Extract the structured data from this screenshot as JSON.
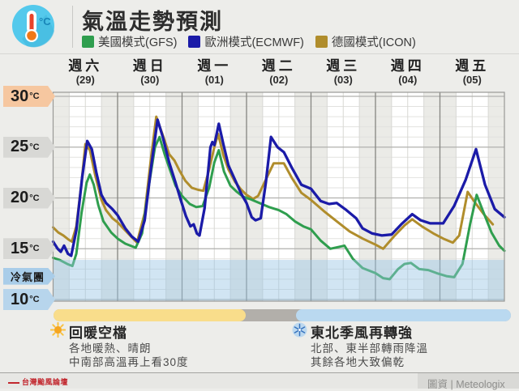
{
  "header": {
    "title": "氣溫走勢預測",
    "legend": [
      {
        "label": "美國模式(GFS)",
        "color": "#2f9e4e"
      },
      {
        "label": "歐洲模式(ECMWF)",
        "color": "#1b1ba8"
      },
      {
        "label": "德國模式(ICON)",
        "color": "#b08d2c"
      }
    ]
  },
  "chart_data": {
    "type": "line",
    "title": "氣溫走勢預測",
    "ylabel": "°C",
    "ylim": [
      9.8,
      30.4
    ],
    "grid": true,
    "x_axis": {
      "days": [
        {
          "weekday": "週六",
          "date": "(29)"
        },
        {
          "weekday": "週日",
          "date": "(30)"
        },
        {
          "weekday": "週一",
          "date": "(01)"
        },
        {
          "weekday": "週二",
          "date": "(02)"
        },
        {
          "weekday": "週三",
          "date": "(03)"
        },
        {
          "weekday": "週四",
          "date": "(04)"
        },
        {
          "weekday": "週五",
          "date": "(05)"
        }
      ],
      "minor_tick_hours": 6
    },
    "y_axis": {
      "unit": "°C",
      "major_ticks": [
        30,
        25,
        20,
        15,
        10
      ],
      "minor_step": 1,
      "tags": [
        {
          "label": "30",
          "unit": "°C",
          "value": 30,
          "bg": "#f6c7a0",
          "small": false
        },
        {
          "label": "25",
          "unit": "°C",
          "value": 25,
          "bg": "#d8d8d5",
          "small": false
        },
        {
          "label": "20",
          "unit": "°C",
          "value": 20,
          "bg": "#d8d8d5",
          "small": false
        },
        {
          "label": "15",
          "unit": "°C",
          "value": 15,
          "bg": "#d8d8d5",
          "small": false
        },
        {
          "label": "冷氣團",
          "unit": "",
          "value": 12.3,
          "bg": "#a9cde9",
          "small": true
        },
        {
          "label": "10",
          "unit": "°C",
          "value": 10,
          "bg": "#b7d5ec",
          "small": false
        }
      ],
      "cold_air_threshold": 13.9,
      "cold_shade_color": "#9ac6e4"
    },
    "series": [
      {
        "name": "德國模式(ICON)",
        "color": "#b08d2c",
        "points": [
          [
            0,
            17.1
          ],
          [
            0.08,
            16.6
          ],
          [
            0.16,
            16.3
          ],
          [
            0.24,
            15.9
          ],
          [
            0.29,
            15.7
          ],
          [
            0.36,
            17.2
          ],
          [
            0.44,
            21.5
          ],
          [
            0.5,
            25.3
          ],
          [
            0.57,
            24.7
          ],
          [
            0.65,
            22.3
          ],
          [
            0.75,
            19.8
          ],
          [
            0.82,
            18.8
          ],
          [
            0.92,
            18.0
          ],
          [
            1.0,
            17.6
          ],
          [
            1.15,
            16.6
          ],
          [
            1.3,
            15.6
          ],
          [
            1.42,
            18.5
          ],
          [
            1.52,
            24.0
          ],
          [
            1.6,
            28.0
          ],
          [
            1.7,
            26.2
          ],
          [
            1.8,
            24.3
          ],
          [
            1.88,
            23.7
          ],
          [
            1.96,
            22.7
          ],
          [
            2.05,
            21.7
          ],
          [
            2.15,
            21.0
          ],
          [
            2.25,
            20.8
          ],
          [
            2.33,
            20.7
          ],
          [
            2.42,
            22.8
          ],
          [
            2.5,
            25.0
          ],
          [
            2.56,
            26.3
          ],
          [
            2.64,
            24.2
          ],
          [
            2.72,
            22.8
          ],
          [
            2.82,
            21.6
          ],
          [
            2.92,
            20.8
          ],
          [
            3.0,
            20.3
          ],
          [
            3.1,
            19.9
          ],
          [
            3.18,
            20.2
          ],
          [
            3.3,
            21.8
          ],
          [
            3.42,
            23.4
          ],
          [
            3.58,
            23.4
          ],
          [
            3.7,
            22.0
          ],
          [
            3.85,
            20.5
          ],
          [
            4.0,
            19.8
          ],
          [
            4.2,
            18.7
          ],
          [
            4.4,
            17.7
          ],
          [
            4.6,
            16.7
          ],
          [
            4.8,
            16.0
          ],
          [
            5.0,
            15.4
          ],
          [
            5.12,
            15.0
          ],
          [
            5.3,
            16.3
          ],
          [
            5.45,
            17.3
          ],
          [
            5.57,
            17.9
          ],
          [
            5.72,
            17.2
          ],
          [
            5.9,
            16.5
          ],
          [
            6.05,
            16.0
          ],
          [
            6.2,
            15.6
          ],
          [
            6.3,
            16.3
          ],
          [
            6.43,
            20.6
          ],
          [
            6.55,
            19.5
          ],
          [
            6.68,
            18.4
          ],
          [
            6.82,
            17.4
          ]
        ]
      },
      {
        "name": "美國模式(GFS)",
        "color": "#2f9e4e",
        "points": [
          [
            0,
            14.1
          ],
          [
            0.1,
            13.9
          ],
          [
            0.22,
            13.5
          ],
          [
            0.3,
            13.3
          ],
          [
            0.36,
            14.5
          ],
          [
            0.44,
            18.5
          ],
          [
            0.52,
            21.5
          ],
          [
            0.57,
            22.3
          ],
          [
            0.63,
            21.3
          ],
          [
            0.7,
            19.3
          ],
          [
            0.78,
            17.7
          ],
          [
            0.9,
            16.6
          ],
          [
            1.0,
            16.0
          ],
          [
            1.12,
            15.5
          ],
          [
            1.28,
            15.1
          ],
          [
            1.38,
            16.5
          ],
          [
            1.48,
            21.0
          ],
          [
            1.58,
            25.0
          ],
          [
            1.65,
            26.0
          ],
          [
            1.73,
            24.3
          ],
          [
            1.8,
            23.0
          ],
          [
            1.9,
            21.2
          ],
          [
            2.0,
            20.2
          ],
          [
            2.12,
            19.4
          ],
          [
            2.22,
            19.1
          ],
          [
            2.32,
            19.2
          ],
          [
            2.42,
            21.0
          ],
          [
            2.5,
            23.5
          ],
          [
            2.57,
            24.7
          ],
          [
            2.65,
            22.6
          ],
          [
            2.75,
            21.2
          ],
          [
            2.85,
            20.6
          ],
          [
            2.95,
            20.1
          ],
          [
            3.05,
            19.9
          ],
          [
            3.2,
            19.5
          ],
          [
            3.35,
            19.1
          ],
          [
            3.5,
            18.8
          ],
          [
            3.62,
            18.4
          ],
          [
            3.75,
            17.7
          ],
          [
            3.88,
            17.2
          ],
          [
            4.0,
            16.9
          ],
          [
            4.15,
            15.8
          ],
          [
            4.3,
            15.0
          ],
          [
            4.45,
            15.2
          ],
          [
            4.52,
            15.3
          ],
          [
            4.65,
            14.0
          ],
          [
            4.8,
            13.1
          ],
          [
            5.0,
            12.6
          ],
          [
            5.12,
            12.1
          ],
          [
            5.22,
            12.0
          ],
          [
            5.35,
            13.0
          ],
          [
            5.45,
            13.5
          ],
          [
            5.55,
            13.6
          ],
          [
            5.68,
            13.0
          ],
          [
            5.82,
            12.9
          ],
          [
            5.95,
            12.6
          ],
          [
            6.1,
            12.3
          ],
          [
            6.22,
            12.2
          ],
          [
            6.35,
            13.5
          ],
          [
            6.47,
            17.5
          ],
          [
            6.57,
            20.3
          ],
          [
            6.68,
            18.5
          ],
          [
            6.8,
            16.6
          ],
          [
            6.92,
            15.3
          ],
          [
            7.0,
            14.8
          ]
        ]
      },
      {
        "name": "歐洲模式(ECMWF)",
        "color": "#1b1ba8",
        "points": [
          [
            0,
            15.7
          ],
          [
            0.07,
            15.0
          ],
          [
            0.12,
            14.7
          ],
          [
            0.17,
            15.3
          ],
          [
            0.23,
            14.5
          ],
          [
            0.28,
            14.3
          ],
          [
            0.36,
            16.8
          ],
          [
            0.45,
            22.0
          ],
          [
            0.53,
            25.6
          ],
          [
            0.6,
            24.8
          ],
          [
            0.67,
            22.5
          ],
          [
            0.75,
            20.3
          ],
          [
            0.82,
            19.5
          ],
          [
            0.92,
            18.9
          ],
          [
            1.0,
            18.3
          ],
          [
            1.12,
            17.0
          ],
          [
            1.22,
            16.2
          ],
          [
            1.32,
            15.7
          ],
          [
            1.42,
            17.8
          ],
          [
            1.52,
            23.0
          ],
          [
            1.62,
            27.7
          ],
          [
            1.7,
            26.0
          ],
          [
            1.8,
            23.5
          ],
          [
            1.9,
            21.5
          ],
          [
            1.98,
            19.8
          ],
          [
            2.06,
            18.2
          ],
          [
            2.13,
            17.2
          ],
          [
            2.18,
            17.4
          ],
          [
            2.23,
            16.5
          ],
          [
            2.27,
            16.3
          ],
          [
            2.35,
            19.0
          ],
          [
            2.44,
            25.0
          ],
          [
            2.47,
            25.5
          ],
          [
            2.5,
            25.2
          ],
          [
            2.57,
            27.3
          ],
          [
            2.64,
            25.3
          ],
          [
            2.72,
            23.2
          ],
          [
            2.82,
            21.8
          ],
          [
            2.92,
            20.4
          ],
          [
            3.0,
            19.5
          ],
          [
            3.08,
            18.1
          ],
          [
            3.14,
            17.8
          ],
          [
            3.22,
            18.0
          ],
          [
            3.3,
            21.5
          ],
          [
            3.38,
            26.0
          ],
          [
            3.48,
            25.0
          ],
          [
            3.58,
            24.5
          ],
          [
            3.7,
            23.0
          ],
          [
            3.85,
            21.3
          ],
          [
            4.0,
            20.9
          ],
          [
            4.15,
            19.7
          ],
          [
            4.28,
            19.4
          ],
          [
            4.4,
            19.5
          ],
          [
            4.55,
            18.8
          ],
          [
            4.7,
            18.0
          ],
          [
            4.8,
            17.0
          ],
          [
            4.95,
            16.5
          ],
          [
            5.1,
            16.3
          ],
          [
            5.25,
            16.4
          ],
          [
            5.4,
            17.4
          ],
          [
            5.57,
            18.4
          ],
          [
            5.7,
            17.8
          ],
          [
            5.85,
            17.5
          ],
          [
            6.05,
            17.5
          ],
          [
            6.22,
            19.2
          ],
          [
            6.4,
            21.8
          ],
          [
            6.56,
            24.8
          ],
          [
            6.7,
            21.3
          ],
          [
            6.85,
            18.9
          ],
          [
            7.0,
            18.1
          ]
        ]
      }
    ],
    "timeline": [
      {
        "name": "warm-period",
        "color": "#f9dd8b",
        "from": 0,
        "to": 2.99
      },
      {
        "name": "transition",
        "color": "#b2afaa",
        "from": 2.99,
        "to": 3.77
      },
      {
        "name": "monsoon-period",
        "color": "#bad9f0",
        "from": 3.77,
        "to": 7.1
      }
    ]
  },
  "annotations": {
    "warm": {
      "title": "回暖空檔",
      "lines": [
        "各地暖熱、晴朗",
        "中南部高溫再上看30度"
      ]
    },
    "cold": {
      "title": "東北季風再轉強",
      "lines": [
        "北部、東半部轉雨降溫",
        "其餘各地大致偏乾"
      ]
    }
  },
  "footer": {
    "logo_text": "台灣颱風論壇",
    "credit": "圖資 | Meteologix"
  }
}
